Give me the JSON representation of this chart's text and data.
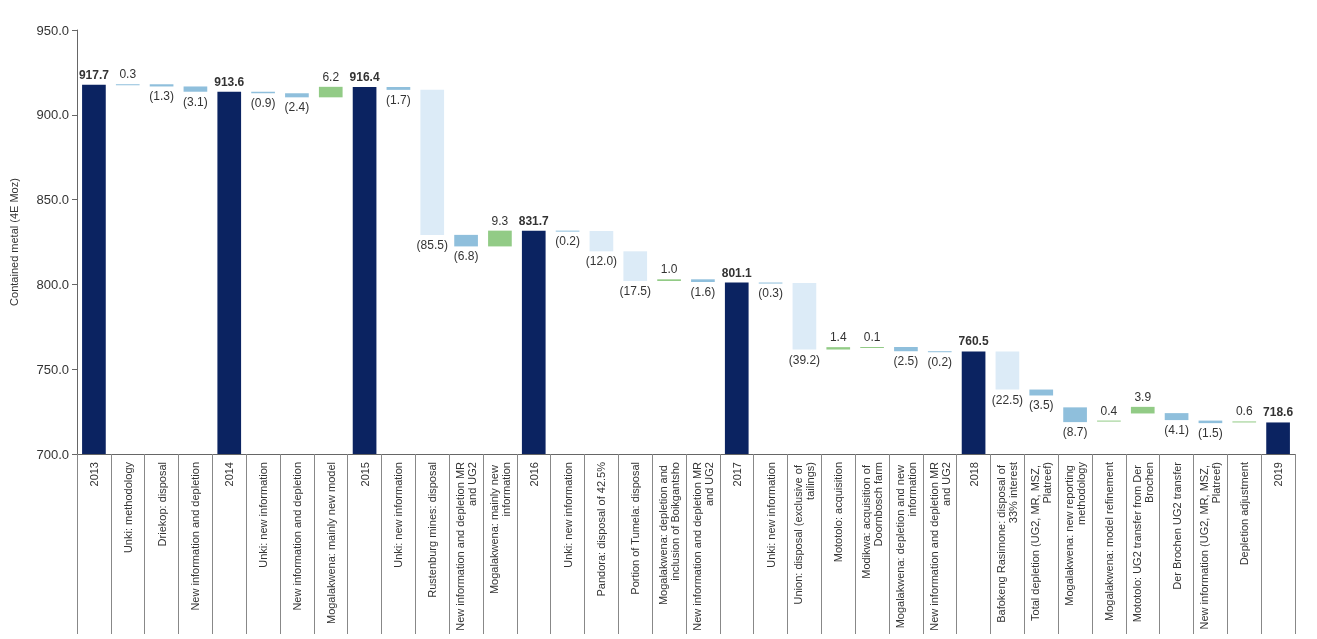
{
  "chart_data": {
    "type": "bar",
    "ylabel": "Contained metal (4E Moz)",
    "categories": [
      "2013",
      "Unki: methodology",
      "Driekop: disposal",
      "New information and depletion",
      "2014",
      "Unki: new information",
      "New information and depletion",
      "Mogalakwena: mainly new model",
      "2015",
      "Unki: new information",
      "Rustenburg mines: disposal",
      "New information and depletion MR and UG2",
      "Mogalakwena: mainly new information",
      "2016",
      "Unki: new information",
      "Pandora: disposal of 42.5%",
      "Portion of Tumela: disposal",
      "Mogalakwena: depletion and inclusion of Boikgantsho",
      "New information and depletion MR and UG2",
      "2017",
      "Unki: new information",
      "Union: disposal (exclusive of tailings)",
      "Mototolo: acquisition",
      "Modikwa: acquisition of Doornbosch farm",
      "Mogalakwena: depletion and new information",
      "New information and depletion MR and UG2",
      "2018",
      "Bafokeng Rasimone: disposal of 33% interest",
      "Total depletion (UG2, MR, MSZ, Platreef)",
      "Mogalakwena: new reporting methodology",
      "Mogalakwena: model refinement",
      "Mototolo: UG2 transfer from Der Brochen",
      "Der Brochen UG2 transfer",
      "New information (UG2, MR, MSZ, Platreef)",
      "Depletion adjustment",
      "2019"
    ],
    "values": [
      917.7,
      0.3,
      -1.3,
      -3.1,
      913.6,
      -0.9,
      -2.4,
      6.2,
      916.4,
      -1.7,
      -85.5,
      -6.8,
      9.3,
      831.7,
      -0.2,
      -12.0,
      -17.5,
      1.0,
      -1.6,
      801.1,
      -0.3,
      -39.2,
      1.4,
      0.1,
      -2.5,
      -0.2,
      760.5,
      -22.5,
      -3.5,
      -8.7,
      0.4,
      3.9,
      -4.1,
      -1.5,
      0.6,
      718.6
    ],
    "base": [
      null,
      917.7,
      918.0,
      916.7,
      null,
      913.6,
      912.7,
      910.3,
      null,
      916.4,
      914.7,
      829.2,
      822.4,
      null,
      831.7,
      831.5,
      819.5,
      802.0,
      803.0,
      null,
      801.1,
      800.8,
      761.6,
      763.0,
      763.1,
      760.6,
      null,
      760.5,
      738.0,
      727.5,
      719.3,
      723.9,
      724.1,
      719.7,
      718.6,
      null
    ],
    "value_labels": [
      "917.7",
      "0.3",
      "(1.3)",
      "(3.1)",
      "913.6",
      "(0.9)",
      "(2.4)",
      "6.2",
      "916.4",
      "(1.7)",
      "(85.5)",
      "(6.8)",
      "9.3",
      "831.7",
      "(0.2)",
      "(12.0)",
      "(17.5)",
      "1.0",
      "(1.6)",
      "801.1",
      "(0.3)",
      "(39.2)",
      "1.4",
      "0.1",
      "(2.5)",
      "(0.2)",
      "760.5",
      "(22.5)",
      "(3.5)",
      "(8.7)",
      "0.4",
      "3.9",
      "(4.1)",
      "(1.5)",
      "0.6",
      "718.6"
    ],
    "colors": [
      "#0b2361",
      "#8fbfdc",
      "#8fbfdc",
      "#8fbfdc",
      "#0b2361",
      "#8fbfdc",
      "#8fbfdc",
      "#92cb86",
      "#0b2361",
      "#8fbfdc",
      "#dcebf7",
      "#8fbfdc",
      "#92cb86",
      "#0b2361",
      "#8fbfdc",
      "#dcebf7",
      "#dcebf7",
      "#92cb86",
      "#8fbfdc",
      "#0b2361",
      "#8fbfdc",
      "#dcebf7",
      "#92cb86",
      "#92cb86",
      "#8fbfdc",
      "#8fbfdc",
      "#0b2361",
      "#dcebf7",
      "#8fbfdc",
      "#8fbfdc",
      "#92cb86",
      "#92cb86",
      "#8fbfdc",
      "#8fbfdc",
      "#92cb86",
      "#0b2361"
    ],
    "ylim": [
      700,
      950
    ],
    "yticks": [
      {
        "value": 700,
        "label": "700.0"
      },
      {
        "value": 750,
        "label": "750.0"
      },
      {
        "value": 800,
        "label": "800.0"
      },
      {
        "value": 850,
        "label": "850.0"
      },
      {
        "value": 900,
        "label": "900.0"
      },
      {
        "value": 950,
        "label": "950.0"
      }
    ],
    "grid": false
  }
}
